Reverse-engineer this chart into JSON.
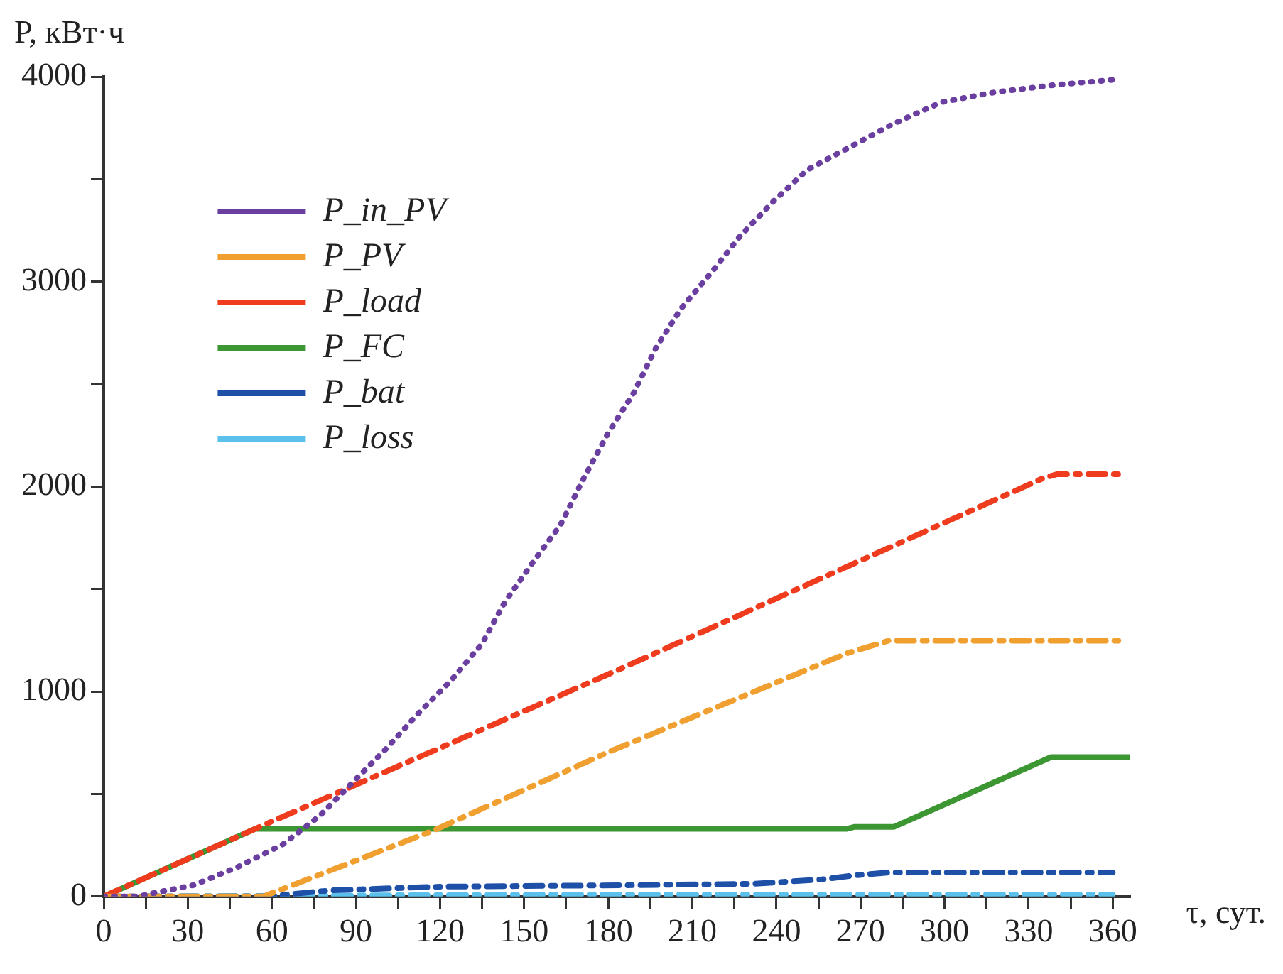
{
  "chart_data": {
    "type": "line",
    "xlabel": "τ, сут.",
    "ylabel": "P, кВт·ч",
    "xlim": [
      0,
      366
    ],
    "ylim": [
      0,
      4000
    ],
    "xticks": [
      0,
      {
        "value": 15,
        "label": null
      },
      30,
      {
        "value": 45,
        "label": null
      },
      60,
      {
        "value": 75,
        "label": null
      },
      90,
      {
        "value": 105,
        "label": null
      },
      120,
      {
        "value": 135,
        "label": null
      },
      150,
      {
        "value": 165,
        "label": null
      },
      180,
      {
        "value": 195,
        "label": null
      },
      210,
      {
        "value": 225,
        "label": null
      },
      240,
      {
        "value": 255,
        "label": null
      },
      270,
      {
        "value": 285,
        "label": null
      },
      300,
      {
        "value": 315,
        "label": null
      },
      330,
      {
        "value": 345,
        "label": null
      },
      360
    ],
    "yticks": [
      0,
      {
        "value": 500,
        "label": null
      },
      1000,
      {
        "value": 1500,
        "label": null
      },
      2000,
      {
        "value": 2500,
        "label": null
      },
      3000,
      {
        "value": 3500,
        "label": null
      },
      4000
    ],
    "grid": false,
    "legend": "top left",
    "marker": "none",
    "series": [
      {
        "name": "P_in_PV",
        "color": "#6a3fa0",
        "line_style": "dotted",
        "x": [
          0,
          12,
          22,
          32,
          48,
          64,
          77,
          89,
          101,
          112,
          124,
          135,
          143,
          153,
          163,
          171,
          180,
          189,
          197,
          206,
          217,
          227,
          239,
          251,
          266,
          282,
          299,
          318,
          339,
          361
        ],
        "values": [
          0,
          0,
          28,
          55,
          145,
          255,
          393,
          559,
          724,
          890,
          1055,
          1234,
          1434,
          1628,
          1814,
          2034,
          2262,
          2455,
          2676,
          2869,
          3048,
          3221,
          3393,
          3545,
          3655,
          3772,
          3876,
          3924,
          3959,
          3986
        ]
      },
      {
        "name": "P_PV",
        "color": "#f0a030",
        "line_style": "dashed",
        "x": [
          0,
          57,
          118,
          181,
          265,
          280,
          362
        ],
        "values": [
          0,
          0,
          324,
          710,
          1186,
          1248,
          1248
        ]
      },
      {
        "name": "P_load",
        "color": "#f03c1e",
        "line_style": "dashed",
        "x": [
          0,
          54,
          181,
          335,
          340,
          362
        ],
        "values": [
          0,
          330,
          1090,
          2040,
          2060,
          2060
        ]
      },
      {
        "name": "P_FC",
        "color": "#3c9632",
        "line_style": "solid",
        "x": [
          0,
          54,
          265,
          268,
          282,
          338,
          366
        ],
        "values": [
          0,
          330,
          330,
          340,
          340,
          680,
          680
        ]
      },
      {
        "name": "P_bat",
        "color": "#1e50a8",
        "line_style": "dashed",
        "x": [
          0,
          58,
          81,
          120,
          187,
          232,
          256,
          268,
          280,
          360
        ],
        "values": [
          0,
          0,
          30,
          48,
          55,
          62,
          83,
          103,
          117,
          117
        ]
      },
      {
        "name": "P_loss",
        "color": "#5bc0eb",
        "line_style": "dashed",
        "x": [
          0,
          180,
          360
        ],
        "values": [
          0,
          10,
          10
        ]
      }
    ]
  }
}
